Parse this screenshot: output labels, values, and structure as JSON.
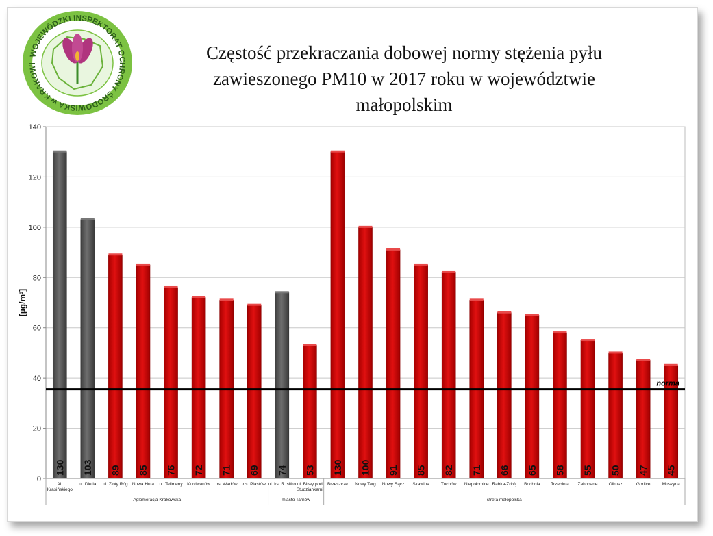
{
  "logo": {
    "ring_text": "WOJEWÓDZKI INSPEKTORAT OCHRONY ŚRODOWISKA w KRAKOWIE",
    "icon": "crocus-flower-over-region-map",
    "ring_color": "#7cc242",
    "flower_color": "#b0357e"
  },
  "title": "Częstość przekraczania dobowej normy stężenia pyłu zawieszonego PM10 w 2017 roku w województwie małopolskim",
  "chart_data": {
    "type": "bar",
    "title": "Częstość przekraczania dobowej normy stężenia pyłu zawieszonego PM10 w 2017 roku w województwie małopolskim",
    "ylabel": "[µg/m³]",
    "xlabel": "",
    "ylim": [
      0,
      140
    ],
    "yticks": [
      0,
      20,
      40,
      60,
      80,
      100,
      120,
      140
    ],
    "grid": true,
    "norm_label": "norma",
    "norm_value": 35.5,
    "categories": [
      "Al. Krasińskiego",
      "ul. Dietla",
      "ul. Złoty Róg",
      "Nowa Huta",
      "ul. Telimeny",
      "Kurdwanów",
      "os. Wadów",
      "os. Piastów",
      "ul. ks. R. sitko",
      "ul. Bitwy pod Studziankami",
      "Brzeszcze",
      "Nowy Targ",
      "Nowy Sącz",
      "Skawina",
      "Tuchów",
      "Niepołomice",
      "Rabka-Zdrój",
      "Bochnia",
      "Trzebinia",
      "Zakopane",
      "Olkusz",
      "Gorlice",
      "Muszyna"
    ],
    "values": [
      130,
      103,
      89,
      85,
      76,
      72,
      71,
      69,
      74,
      53,
      130,
      100,
      91,
      85,
      82,
      71,
      66,
      65,
      58,
      55,
      50,
      47,
      45
    ],
    "bar_colors": [
      "#595959",
      "#595959",
      "#cc0000",
      "#cc0000",
      "#cc0000",
      "#cc0000",
      "#cc0000",
      "#cc0000",
      "#595959",
      "#cc0000",
      "#cc0000",
      "#cc0000",
      "#cc0000",
      "#cc0000",
      "#cc0000",
      "#cc0000",
      "#cc0000",
      "#cc0000",
      "#cc0000",
      "#cc0000",
      "#cc0000",
      "#cc0000",
      "#cc0000"
    ],
    "groups": [
      {
        "label": "Aglomeracja Krakowska",
        "start": 0,
        "end": 7
      },
      {
        "label": "miasto Tarnów",
        "start": 8,
        "end": 9
      },
      {
        "label": "strefa małopolska",
        "start": 10,
        "end": 22
      }
    ]
  }
}
